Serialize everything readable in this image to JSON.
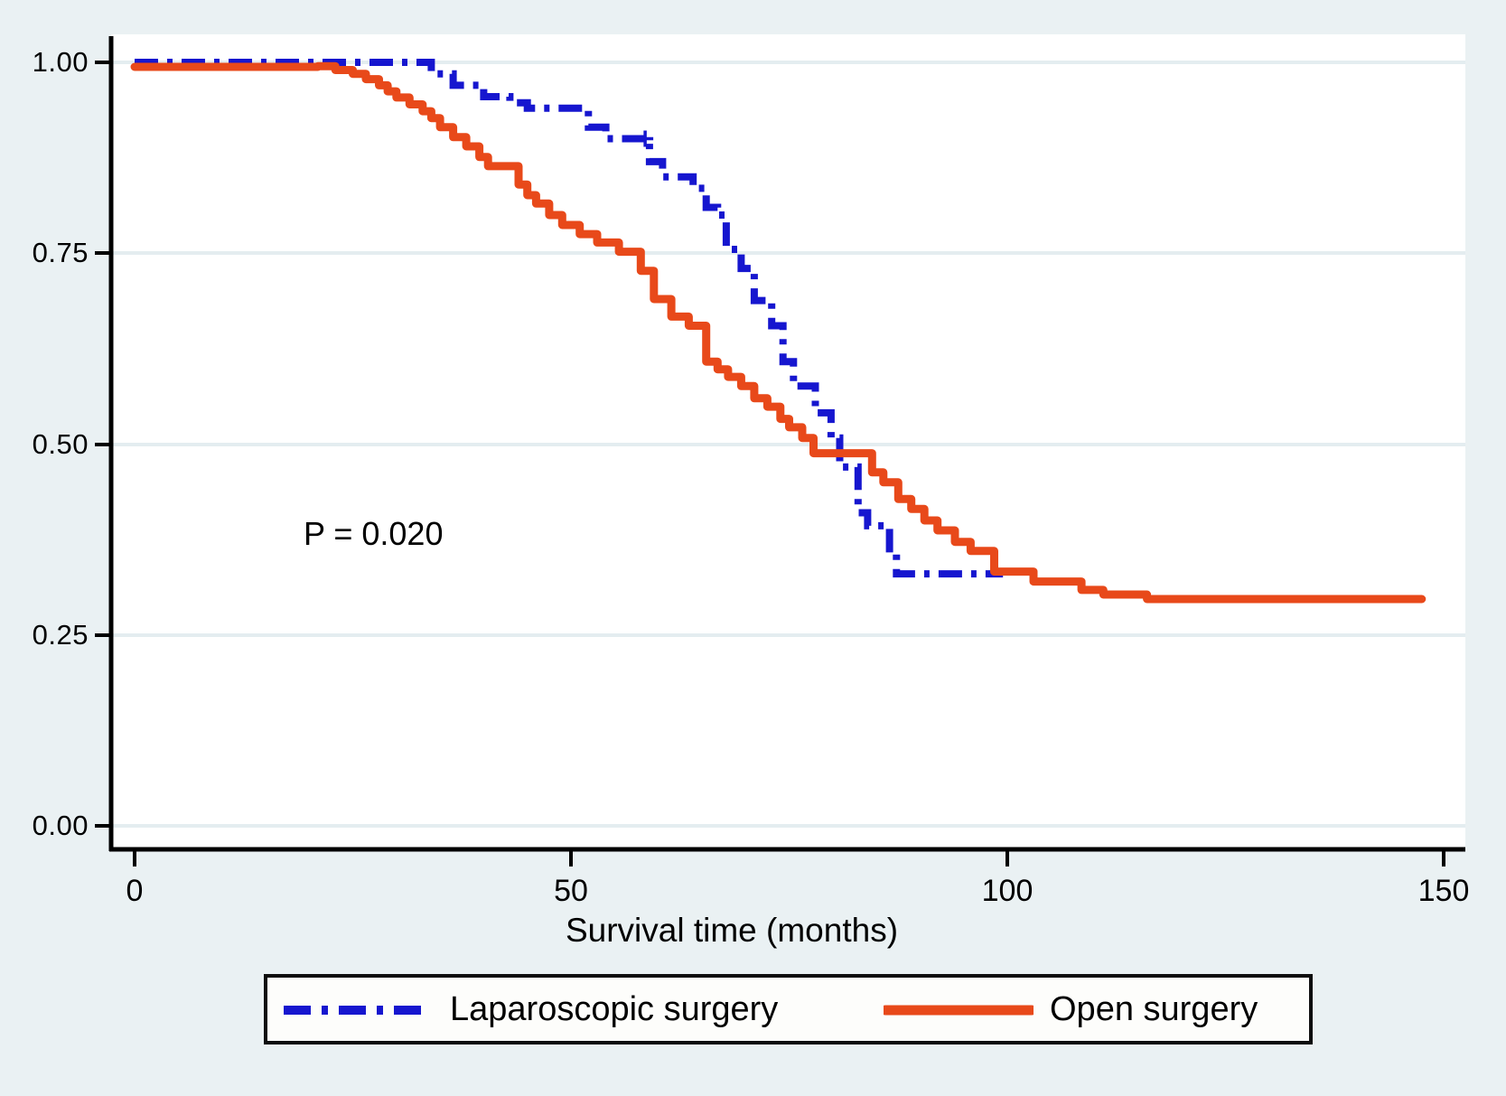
{
  "figure": {
    "background_color": "#eaf1f3",
    "plot_background_color": "#ffffff",
    "grid_color": "#e4edf0",
    "axis_color": "#000000"
  },
  "axes": {
    "x_title": "Survival time (months)",
    "x_labels": [
      "0",
      "50",
      "100",
      "150"
    ],
    "y_labels": [
      "1.00",
      "0.75",
      "0.50",
      "0.25",
      "0.00"
    ]
  },
  "annotation": {
    "p_value": "P = 0.020"
  },
  "legend": {
    "laparoscopic_label": "Laparoscopic surgery",
    "open_label": "Open surgery"
  },
  "chart_data": {
    "type": "line",
    "chart_kind": "kaplan_meier_step",
    "title": "",
    "xlabel": "Survival time (months)",
    "ylabel": "",
    "xlim": [
      0,
      152.5
    ],
    "ylim": [
      0.0,
      1.0
    ],
    "x_ticks": [
      0,
      50,
      100,
      150
    ],
    "y_ticks": [
      0.0,
      0.25,
      0.5,
      0.75,
      1.0
    ],
    "grid": "horizontal",
    "legend_position": "bottom",
    "p_value_annotation": {
      "text": "P = 0.020",
      "x": 19.5,
      "y": 0.4
    },
    "series": [
      {
        "name": "Laparoscopic surgery",
        "color": "#1616cf",
        "line_style": "dash-dot",
        "end_x": 99.5,
        "censor_marks": [
          [
            58.5,
            0.9
          ]
        ],
        "steps": [
          [
            0,
            1.0
          ],
          [
            34,
            0.985
          ],
          [
            36.5,
            0.97
          ],
          [
            40,
            0.955
          ],
          [
            43,
            0.947
          ],
          [
            45,
            0.94
          ],
          [
            52,
            0.915
          ],
          [
            54,
            0.9
          ],
          [
            59,
            0.87
          ],
          [
            60.5,
            0.85
          ],
          [
            64,
            0.835
          ],
          [
            65.5,
            0.81
          ],
          [
            66.8,
            0.8
          ],
          [
            67.8,
            0.755
          ],
          [
            69.5,
            0.73
          ],
          [
            71,
            0.688
          ],
          [
            73,
            0.655
          ],
          [
            74.3,
            0.608
          ],
          [
            75.5,
            0.576
          ],
          [
            78,
            0.541
          ],
          [
            79.8,
            0.508
          ],
          [
            80.8,
            0.47
          ],
          [
            82.9,
            0.41
          ],
          [
            84,
            0.393
          ],
          [
            86.5,
            0.357
          ],
          [
            87.3,
            0.33
          ]
        ]
      },
      {
        "name": "Open surgery",
        "color": "#e8491a",
        "line_style": "solid",
        "end_x": 147.5,
        "censor_marks": [],
        "steps": [
          [
            0,
            1.0
          ],
          [
            21,
            0.995
          ],
          [
            23,
            0.99
          ],
          [
            25,
            0.985
          ],
          [
            26.5,
            0.978
          ],
          [
            28,
            0.97
          ],
          [
            29,
            0.962
          ],
          [
            30,
            0.954
          ],
          [
            31.5,
            0.945
          ],
          [
            33,
            0.936
          ],
          [
            34,
            0.927
          ],
          [
            35,
            0.915
          ],
          [
            36.5,
            0.902
          ],
          [
            38,
            0.89
          ],
          [
            39.5,
            0.876
          ],
          [
            40.5,
            0.864
          ],
          [
            44,
            0.84
          ],
          [
            45,
            0.826
          ],
          [
            46,
            0.815
          ],
          [
            47.5,
            0.8
          ],
          [
            49,
            0.787
          ],
          [
            51,
            0.775
          ],
          [
            53,
            0.764
          ],
          [
            55.5,
            0.752
          ],
          [
            58,
            0.727
          ],
          [
            59.5,
            0.69
          ],
          [
            61.5,
            0.667
          ],
          [
            63.5,
            0.655
          ],
          [
            65.5,
            0.608
          ],
          [
            66.8,
            0.598
          ],
          [
            68,
            0.588
          ],
          [
            69.5,
            0.576
          ],
          [
            71,
            0.56
          ],
          [
            72.5,
            0.549
          ],
          [
            74,
            0.533
          ],
          [
            75,
            0.522
          ],
          [
            76.5,
            0.508
          ],
          [
            77.8,
            0.488
          ],
          [
            84.5,
            0.463
          ],
          [
            85.8,
            0.45
          ],
          [
            87.5,
            0.428
          ],
          [
            89,
            0.415
          ],
          [
            90.5,
            0.4
          ],
          [
            92,
            0.387
          ],
          [
            94,
            0.372
          ],
          [
            95.8,
            0.36
          ],
          [
            98.5,
            0.333
          ],
          [
            103,
            0.32
          ],
          [
            108.5,
            0.309
          ],
          [
            111,
            0.303
          ],
          [
            116,
            0.297
          ]
        ]
      }
    ]
  }
}
